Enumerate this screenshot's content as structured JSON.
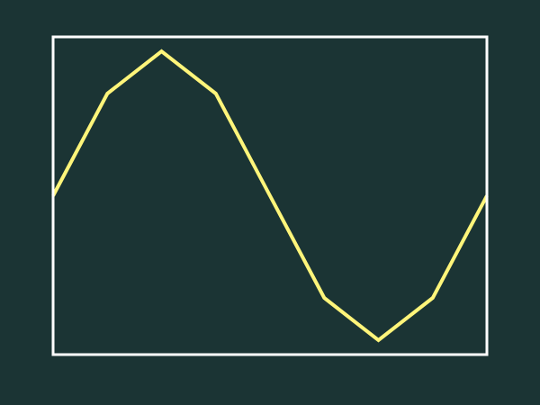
{
  "colors": {
    "background": "#1b3434",
    "frame": "#ffffff",
    "line": "#fff57a"
  },
  "chart_data": {
    "type": "line",
    "title": "",
    "xlabel": "",
    "ylabel": "",
    "grid": false,
    "legend": "none",
    "x": [
      0,
      1,
      2,
      3,
      4,
      5,
      6,
      7,
      8
    ],
    "xlim": [
      0,
      8
    ],
    "ylim": [
      -1.1,
      1.1
    ],
    "series": [
      {
        "values": [
          0,
          0.7071,
          1,
          0.7071,
          0,
          -0.7071,
          -1,
          -0.7071,
          0
        ]
      }
    ]
  }
}
